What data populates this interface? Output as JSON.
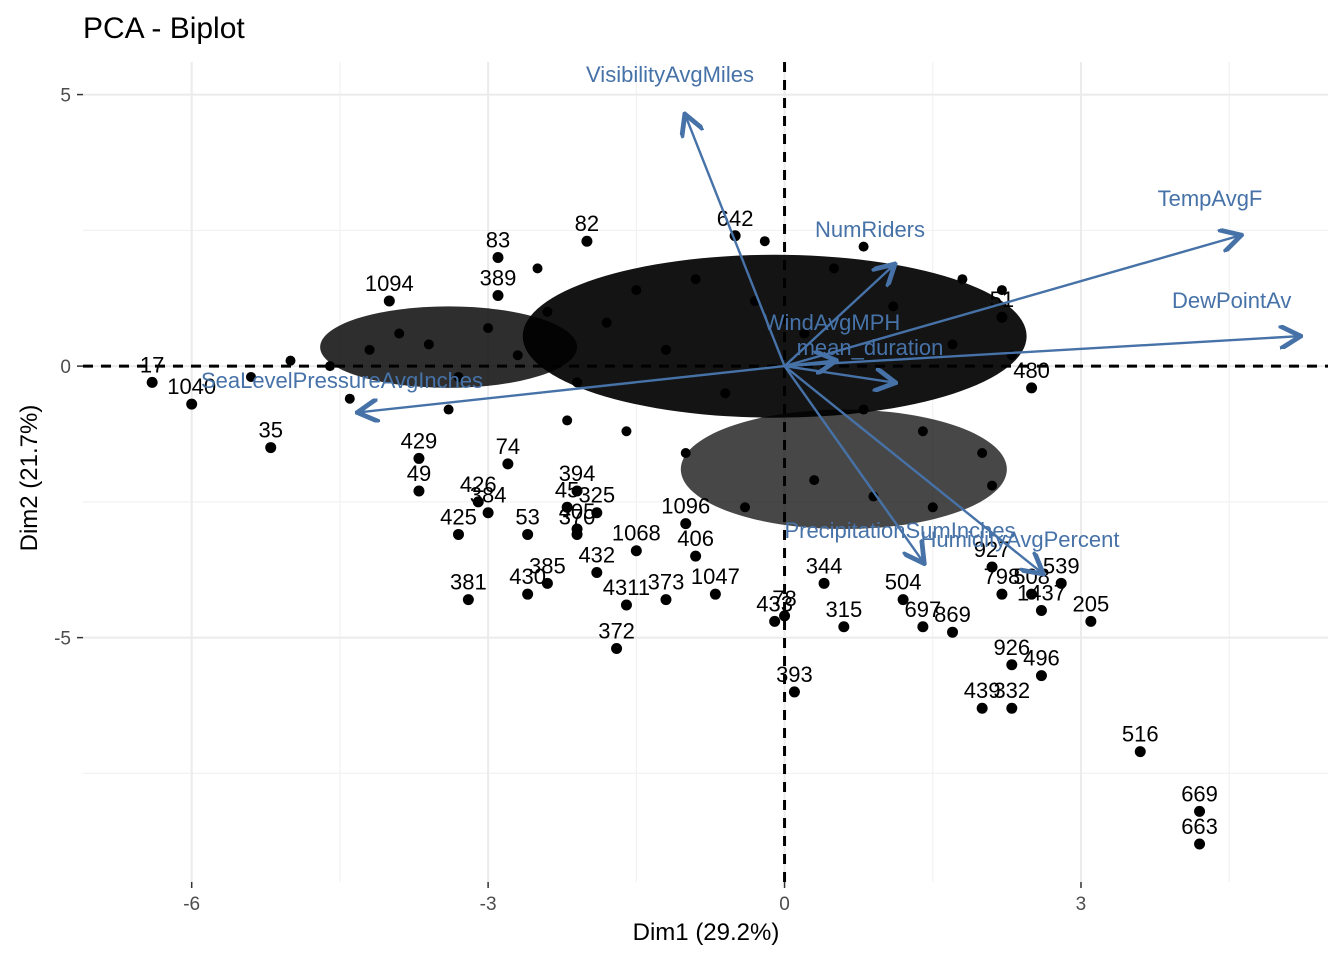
{
  "chart_data": {
    "type": "scatter",
    "title": "PCA - Biplot",
    "xlabel": "Dim1 (29.2%)",
    "ylabel": "Dim2 (21.7%)",
    "xlim": [
      -7.1,
      5.5
    ],
    "ylim": [
      -9.5,
      5.6
    ],
    "xticks": [
      -6,
      -3,
      0,
      3
    ],
    "yticks": [
      5,
      0,
      -5
    ],
    "grid": true,
    "arrow_color": "#4672a8",
    "point_color": "#000000",
    "points": [
      {
        "label": "17",
        "x": -6.4,
        "y": -0.3
      },
      {
        "label": "1040",
        "x": -6.0,
        "y": -0.7
      },
      {
        "label": "35",
        "x": -5.2,
        "y": -1.5
      },
      {
        "label": "429",
        "x": -3.7,
        "y": -1.7
      },
      {
        "label": "49",
        "x": -3.7,
        "y": -2.3
      },
      {
        "label": "426",
        "x": -3.1,
        "y": -2.5
      },
      {
        "label": "425",
        "x": -3.3,
        "y": -3.1
      },
      {
        "label": "384",
        "x": -3.0,
        "y": -2.7
      },
      {
        "label": "381",
        "x": -3.2,
        "y": -4.3
      },
      {
        "label": "53",
        "x": -2.6,
        "y": -3.1
      },
      {
        "label": "430",
        "x": -2.6,
        "y": -4.2
      },
      {
        "label": "385",
        "x": -2.4,
        "y": -4.0
      },
      {
        "label": "45",
        "x": -2.2,
        "y": -2.6
      },
      {
        "label": "405",
        "x": -2.1,
        "y": -3.0
      },
      {
        "label": "394",
        "x": -2.1,
        "y": -2.3
      },
      {
        "label": "370",
        "x": -2.1,
        "y": -3.1
      },
      {
        "label": "432",
        "x": -1.9,
        "y": -3.8
      },
      {
        "label": "4311",
        "x": -1.6,
        "y": -4.4
      },
      {
        "label": "373",
        "x": -1.2,
        "y": -4.3
      },
      {
        "label": "372",
        "x": -1.7,
        "y": -5.2
      },
      {
        "label": "1068",
        "x": -1.5,
        "y": -3.4
      },
      {
        "label": "406",
        "x": -0.9,
        "y": -3.5
      },
      {
        "label": "1047",
        "x": -0.7,
        "y": -4.2
      },
      {
        "label": "433",
        "x": -0.1,
        "y": -4.7
      },
      {
        "label": "78",
        "x": 0.0,
        "y": -4.6
      },
      {
        "label": "393",
        "x": 0.1,
        "y": -6.0
      },
      {
        "label": "315",
        "x": 0.6,
        "y": -4.8
      },
      {
        "label": "344",
        "x": 0.4,
        "y": -4.0
      },
      {
        "label": "504",
        "x": 1.2,
        "y": -4.3
      },
      {
        "label": "697",
        "x": 1.4,
        "y": -4.8
      },
      {
        "label": "869",
        "x": 1.7,
        "y": -4.9
      },
      {
        "label": "927",
        "x": 2.1,
        "y": -3.7
      },
      {
        "label": "798",
        "x": 2.2,
        "y": -4.2
      },
      {
        "label": "508",
        "x": 2.5,
        "y": -4.2
      },
      {
        "label": "1437",
        "x": 2.6,
        "y": -4.5
      },
      {
        "label": "205",
        "x": 3.1,
        "y": -4.7
      },
      {
        "label": "539",
        "x": 2.8,
        "y": -4.0
      },
      {
        "label": "926",
        "x": 2.3,
        "y": -5.5
      },
      {
        "label": "496",
        "x": 2.6,
        "y": -5.7
      },
      {
        "label": "439",
        "x": 2.0,
        "y": -6.3
      },
      {
        "label": "332",
        "x": 2.3,
        "y": -6.3
      },
      {
        "label": "516",
        "x": 3.6,
        "y": -7.1
      },
      {
        "label": "669",
        "x": 4.2,
        "y": -8.2
      },
      {
        "label": "663",
        "x": 4.2,
        "y": -8.8
      },
      {
        "label": "480",
        "x": 2.5,
        "y": -0.4
      },
      {
        "label": "51",
        "x": 2.2,
        "y": 0.9
      },
      {
        "label": "642",
        "x": -0.5,
        "y": 2.4
      },
      {
        "label": "83",
        "x": -2.9,
        "y": 2.0
      },
      {
        "label": "82",
        "x": -2.0,
        "y": 2.3
      },
      {
        "label": "1094",
        "x": -4.0,
        "y": 1.2
      },
      {
        "label": "389",
        "x": -2.9,
        "y": 1.3
      },
      {
        "label": "74",
        "x": -2.8,
        "y": -1.8
      },
      {
        "label": "325",
        "x": -1.9,
        "y": -2.7
      },
      {
        "label": "1096",
        "x": -1.0,
        "y": -2.9
      }
    ],
    "cluster_points": [
      [
        -5.4,
        -0.2
      ],
      [
        -5.0,
        0.1
      ],
      [
        -4.6,
        0.0
      ],
      [
        -4.2,
        0.3
      ],
      [
        -3.9,
        0.6
      ],
      [
        -3.6,
        0.4
      ],
      [
        -3.3,
        -0.2
      ],
      [
        -3.0,
        0.7
      ],
      [
        -2.7,
        0.2
      ],
      [
        -2.4,
        1.0
      ],
      [
        -2.1,
        -0.3
      ],
      [
        -1.8,
        0.8
      ],
      [
        -1.5,
        1.4
      ],
      [
        -1.2,
        0.3
      ],
      [
        -0.9,
        1.6
      ],
      [
        -0.6,
        -0.5
      ],
      [
        -0.3,
        1.2
      ],
      [
        0.2,
        0.6
      ],
      [
        0.5,
        1.8
      ],
      [
        0.8,
        -0.8
      ],
      [
        1.1,
        1.1
      ],
      [
        1.4,
        -1.2
      ],
      [
        1.7,
        0.4
      ],
      [
        2.0,
        -1.6
      ],
      [
        2.3,
        0.2
      ],
      [
        2.1,
        -2.2
      ],
      [
        1.5,
        -2.6
      ],
      [
        0.9,
        -2.4
      ],
      [
        0.3,
        -2.1
      ],
      [
        -0.4,
        -2.6
      ],
      [
        -1.0,
        -1.6
      ],
      [
        -1.6,
        -1.2
      ],
      [
        -2.2,
        -1.0
      ],
      [
        -3.4,
        -0.8
      ],
      [
        -4.4,
        -0.6
      ],
      [
        -0.2,
        2.3
      ],
      [
        0.8,
        2.2
      ],
      [
        1.8,
        1.6
      ],
      [
        2.2,
        1.4
      ],
      [
        -2.5,
        1.8
      ]
    ],
    "vectors": [
      {
        "name": "VisibilityAvgMiles",
        "x": -1.0,
        "y": 4.6
      },
      {
        "name": "TempAvgF",
        "x": 4.6,
        "y": 2.4
      },
      {
        "name": "DewPointAvgF",
        "x": 5.2,
        "y": 0.55
      },
      {
        "name": "NumRiders",
        "x": 1.1,
        "y": 1.85
      },
      {
        "name": "WindAvgMPH",
        "x": 0.5,
        "y": 0.1
      },
      {
        "name": "mean_duration",
        "x": 1.1,
        "y": -0.3
      },
      {
        "name": "SeaLevelPressureAvgInches",
        "x": -4.3,
        "y": -0.85
      },
      {
        "name": "PrecipitationSumInches",
        "x": 1.4,
        "y": -3.6
      },
      {
        "name": "HumidityAvgPercent",
        "x": 2.6,
        "y": -3.8
      }
    ]
  },
  "labels": {
    "title": "PCA - Biplot",
    "xlabel": "Dim1 (29.2%)",
    "ylabel": "Dim2 (21.7%)",
    "vec_visibility": "VisibilityAvgMiles",
    "vec_temp": "TempAvgF",
    "vec_dewpoint": "DewPointAv",
    "vec_numriders": "NumRiders",
    "vec_wind": "WindAvgMPH",
    "vec_duration": "mean_duration",
    "vec_sealevel": "SeaLevelPressureAvgInches",
    "vec_precip": "PrecipitationSumInches",
    "vec_humidity": "HumidityAvgPercent"
  }
}
